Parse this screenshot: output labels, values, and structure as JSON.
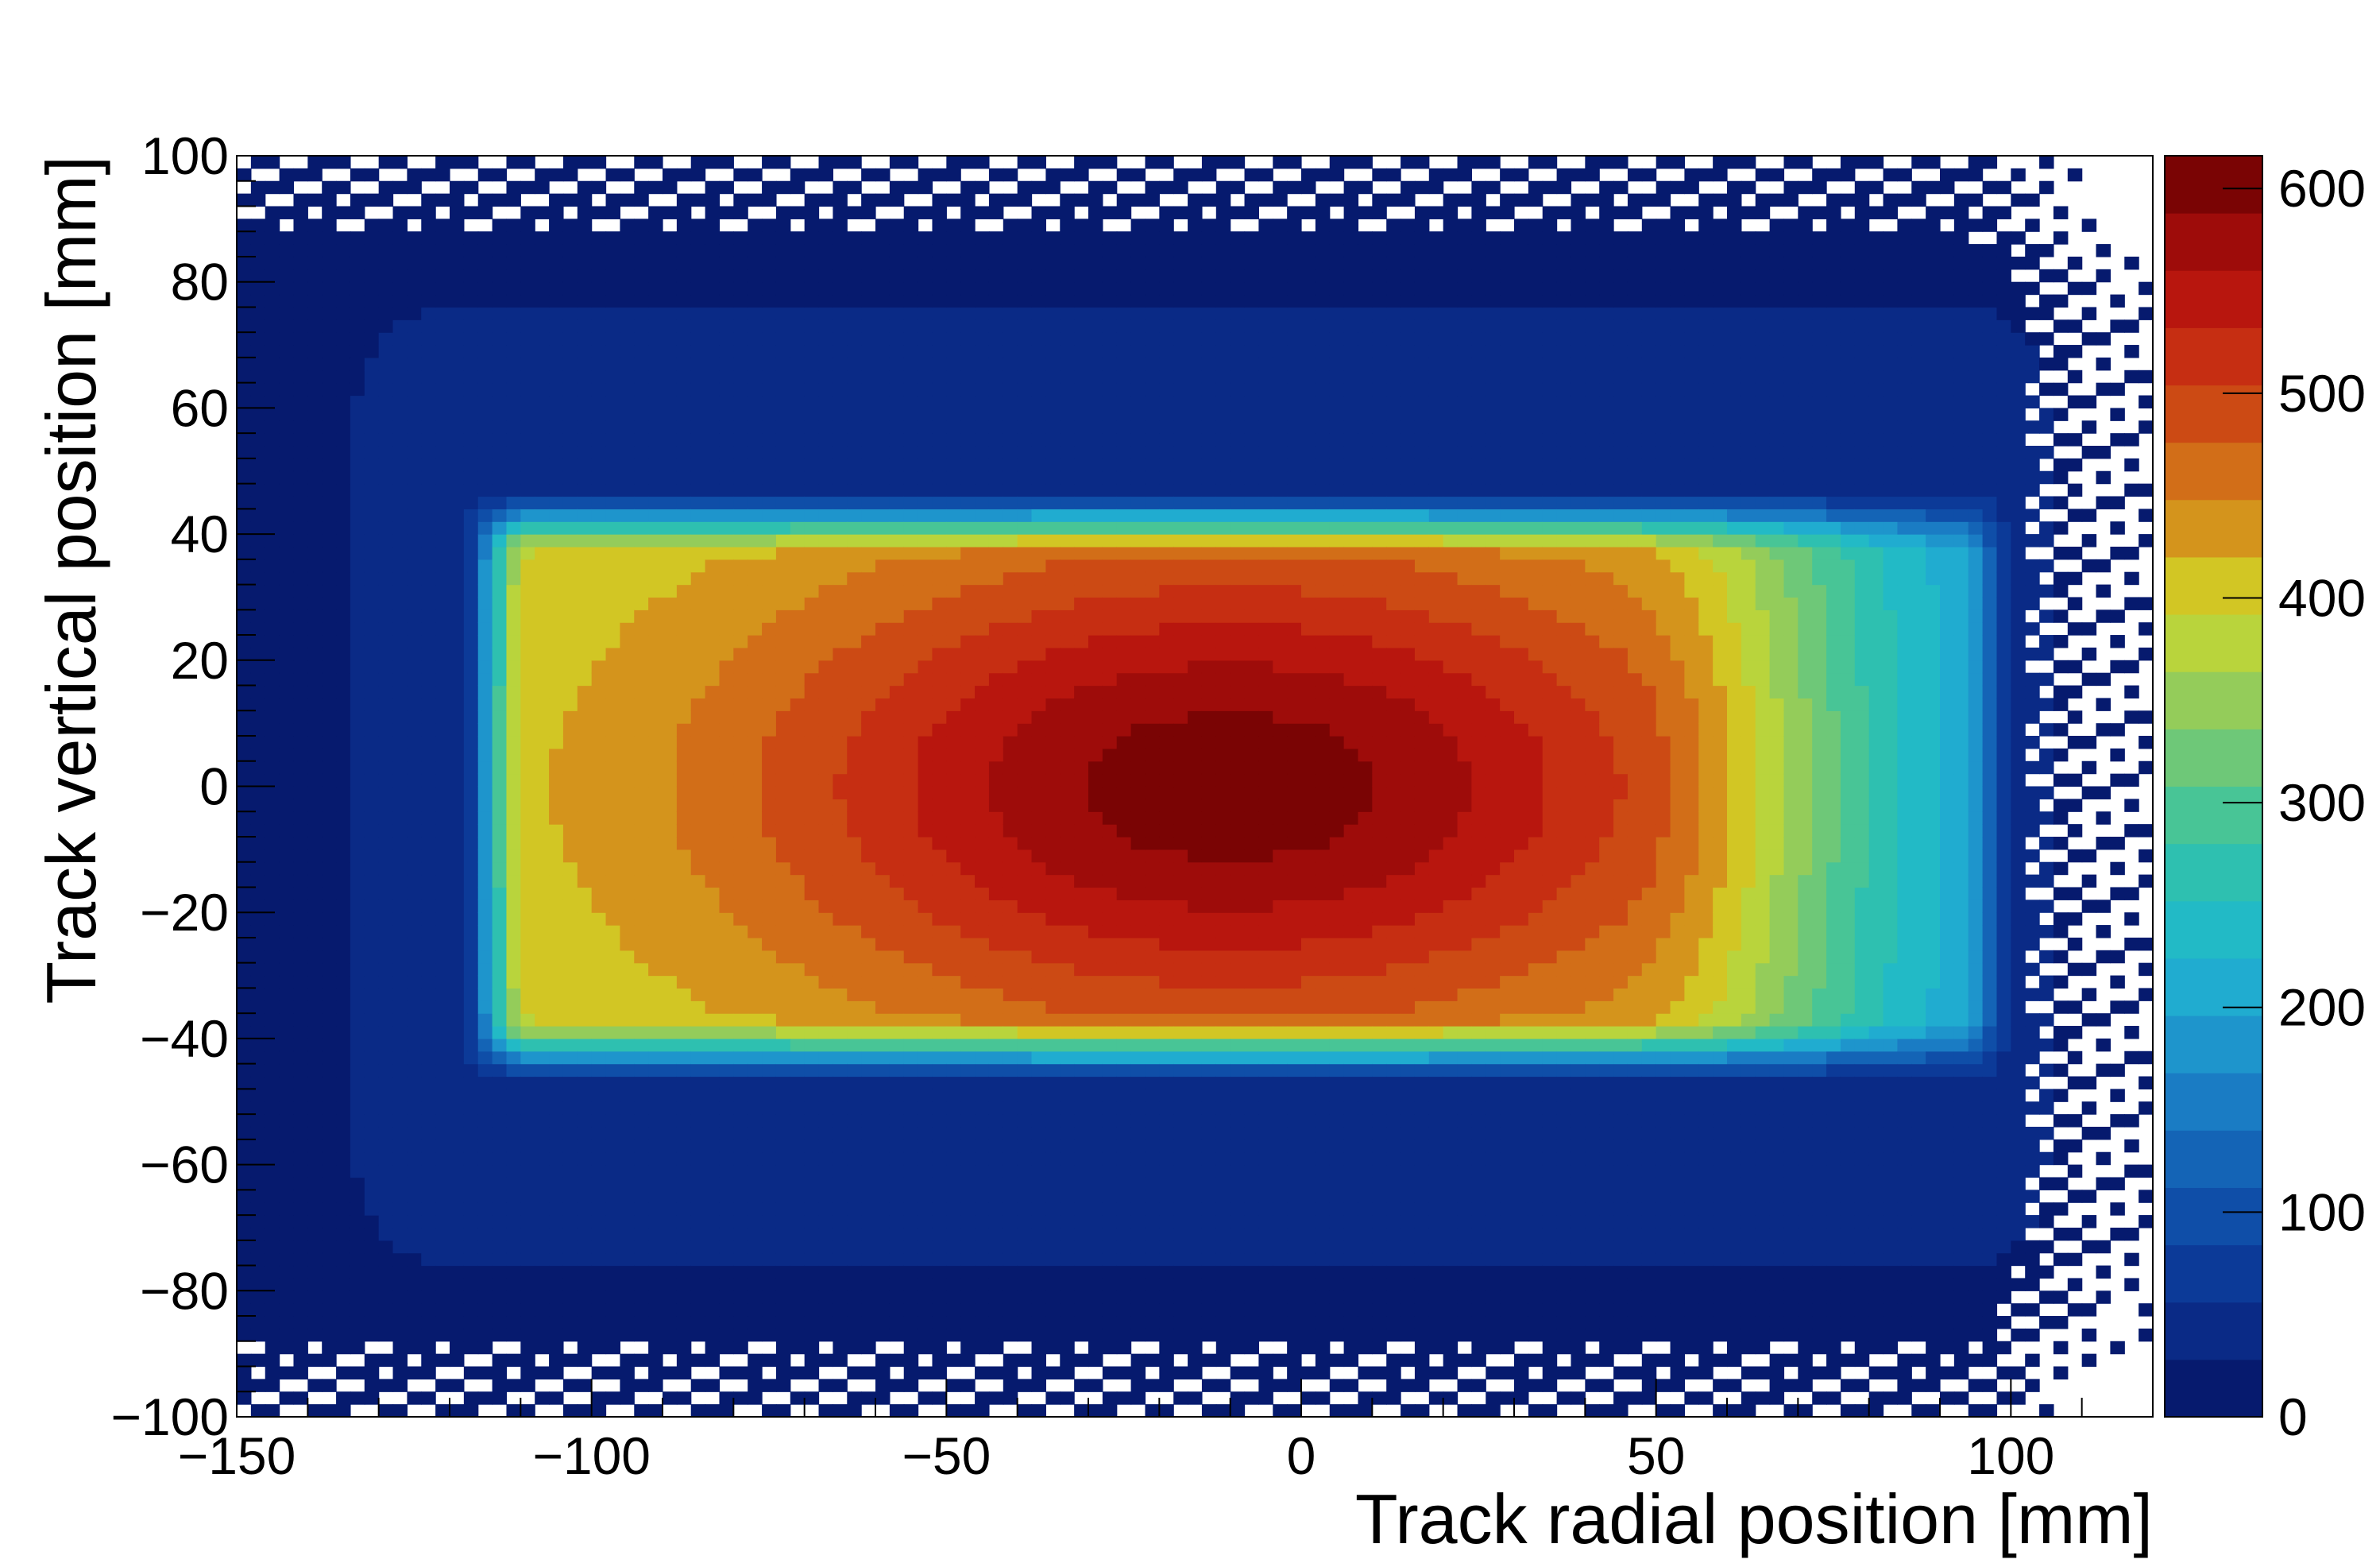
{
  "chart_data": {
    "type": "heatmap",
    "title": "",
    "xlabel": "Track radial position [mm]",
    "ylabel": "Track vertical position [mm]",
    "xlim": [
      -150,
      120
    ],
    "ylim": [
      -100,
      100
    ],
    "x_ticks": [
      -150,
      -100,
      -50,
      0,
      50,
      100
    ],
    "x_tick_labels": [
      "−150",
      "−100",
      "−50",
      "0",
      "50",
      "100"
    ],
    "y_ticks": [
      -100,
      -80,
      -60,
      -40,
      -20,
      0,
      20,
      40,
      60,
      80,
      100
    ],
    "y_tick_labels": [
      "−100",
      "−80",
      "−60",
      "−40",
      "−20",
      "0",
      "20",
      "40",
      "60",
      "80",
      "100"
    ],
    "colorbar": {
      "range": [
        0,
        616
      ],
      "ticks": [
        0,
        100,
        200,
        300,
        400,
        500,
        600
      ],
      "tick_labels": [
        "0",
        "100",
        "200",
        "300",
        "400",
        "500",
        "600"
      ],
      "colors": [
        "#061a6e",
        "#0a2a86",
        "#0c3a98",
        "#0f4ea8",
        "#1464b6",
        "#1a7cc4",
        "#1e95cc",
        "#20acd0",
        "#22bac6",
        "#2ec0b0",
        "#48c596",
        "#6ec878",
        "#94cc5a",
        "#b9d43c",
        "#d2c624",
        "#d4941c",
        "#d26e18",
        "#cc4a14",
        "#c62e12",
        "#b8160e",
        "#9e0c0a",
        "#7a0404"
      ]
    },
    "density": {
      "plateau_x_range": [
        -115,
        95
      ],
      "plateau_y_range": [
        -42,
        42
      ],
      "peak_x": -10,
      "peak_y": 0,
      "peak_value": 560
    }
  }
}
